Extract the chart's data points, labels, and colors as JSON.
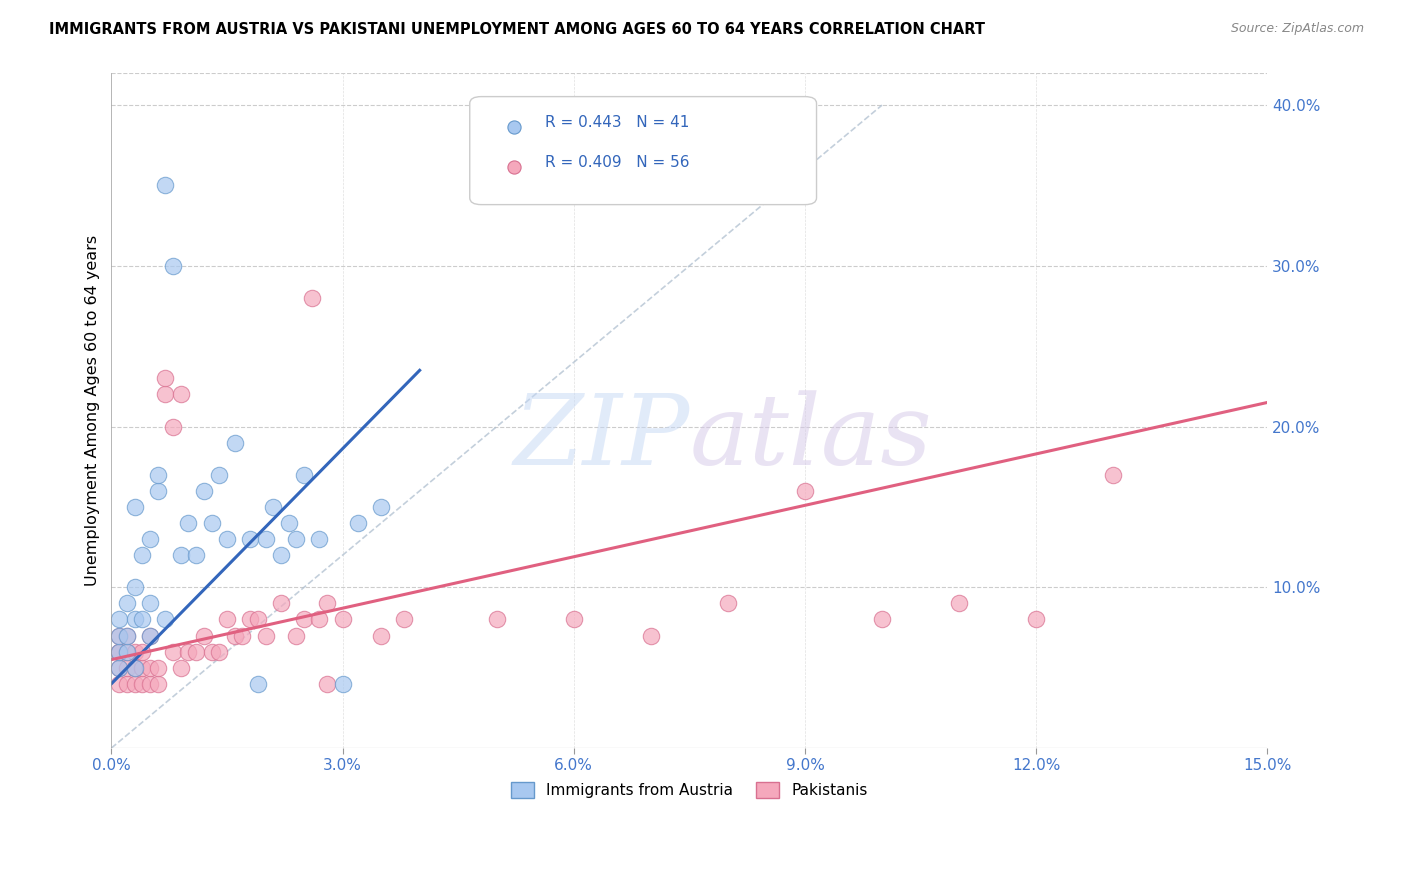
{
  "title": "IMMIGRANTS FROM AUSTRIA VS PAKISTANI UNEMPLOYMENT AMONG AGES 60 TO 64 YEARS CORRELATION CHART",
  "source": "Source: ZipAtlas.com",
  "ylabel_left": "Unemployment Among Ages 60 to 64 years",
  "xlim": [
    0.0,
    0.15
  ],
  "ylim": [
    0.0,
    0.42
  ],
  "xticks": [
    0.0,
    0.03,
    0.06,
    0.09,
    0.12,
    0.15
  ],
  "xticklabels": [
    "0.0%",
    "3.0%",
    "6.0%",
    "9.0%",
    "12.0%",
    "15.0%"
  ],
  "yticks_right": [
    0.1,
    0.2,
    0.3,
    0.4
  ],
  "yticklabels_right": [
    "10.0%",
    "20.0%",
    "30.0%",
    "40.0%"
  ],
  "austria_color": "#A8C8F0",
  "austria_edge": "#6699CC",
  "pakistan_color": "#F5A8BC",
  "pakistan_edge": "#D87090",
  "austria_line_color": "#3366BB",
  "pakistan_line_color": "#E06080",
  "austria_R": 0.443,
  "austria_N": 41,
  "pakistan_R": 0.409,
  "pakistan_N": 56,
  "watermark_zip": "ZIP",
  "watermark_atlas": "atlas",
  "legend_label_austria": "Immigrants from Austria",
  "legend_label_pakistan": "Pakistanis",
  "austria_x": [
    0.001,
    0.001,
    0.001,
    0.001,
    0.002,
    0.002,
    0.002,
    0.003,
    0.003,
    0.003,
    0.003,
    0.004,
    0.004,
    0.005,
    0.005,
    0.005,
    0.006,
    0.006,
    0.007,
    0.007,
    0.008,
    0.009,
    0.01,
    0.011,
    0.012,
    0.013,
    0.014,
    0.015,
    0.016,
    0.018,
    0.019,
    0.02,
    0.021,
    0.022,
    0.023,
    0.024,
    0.025,
    0.027,
    0.03,
    0.032,
    0.035
  ],
  "austria_y": [
    0.05,
    0.06,
    0.07,
    0.08,
    0.06,
    0.07,
    0.09,
    0.05,
    0.08,
    0.1,
    0.15,
    0.08,
    0.12,
    0.07,
    0.09,
    0.13,
    0.16,
    0.17,
    0.35,
    0.08,
    0.3,
    0.12,
    0.14,
    0.12,
    0.16,
    0.14,
    0.17,
    0.13,
    0.19,
    0.13,
    0.04,
    0.13,
    0.15,
    0.12,
    0.14,
    0.13,
    0.17,
    0.13,
    0.04,
    0.14,
    0.15
  ],
  "pakistan_x": [
    0.001,
    0.001,
    0.001,
    0.001,
    0.001,
    0.002,
    0.002,
    0.002,
    0.002,
    0.003,
    0.003,
    0.003,
    0.004,
    0.004,
    0.004,
    0.005,
    0.005,
    0.005,
    0.006,
    0.006,
    0.007,
    0.007,
    0.008,
    0.008,
    0.009,
    0.009,
    0.01,
    0.011,
    0.012,
    0.013,
    0.014,
    0.015,
    0.016,
    0.017,
    0.018,
    0.019,
    0.02,
    0.022,
    0.024,
    0.025,
    0.026,
    0.027,
    0.028,
    0.03,
    0.035,
    0.038,
    0.05,
    0.06,
    0.07,
    0.08,
    0.09,
    0.1,
    0.11,
    0.12,
    0.13,
    0.028
  ],
  "pakistan_y": [
    0.04,
    0.05,
    0.06,
    0.06,
    0.07,
    0.04,
    0.05,
    0.06,
    0.07,
    0.04,
    0.05,
    0.06,
    0.04,
    0.05,
    0.06,
    0.04,
    0.05,
    0.07,
    0.04,
    0.05,
    0.22,
    0.23,
    0.2,
    0.06,
    0.22,
    0.05,
    0.06,
    0.06,
    0.07,
    0.06,
    0.06,
    0.08,
    0.07,
    0.07,
    0.08,
    0.08,
    0.07,
    0.09,
    0.07,
    0.08,
    0.28,
    0.08,
    0.09,
    0.08,
    0.07,
    0.08,
    0.08,
    0.08,
    0.07,
    0.09,
    0.16,
    0.08,
    0.09,
    0.08,
    0.17,
    0.04
  ],
  "austria_line_x": [
    0.0,
    0.04
  ],
  "austria_line_y": [
    0.04,
    0.235
  ],
  "pakistan_line_x": [
    0.0,
    0.15
  ],
  "pakistan_line_y": [
    0.055,
    0.215
  ],
  "ref_line_x": [
    0.0,
    0.1
  ],
  "ref_line_y": [
    0.0,
    0.4
  ]
}
